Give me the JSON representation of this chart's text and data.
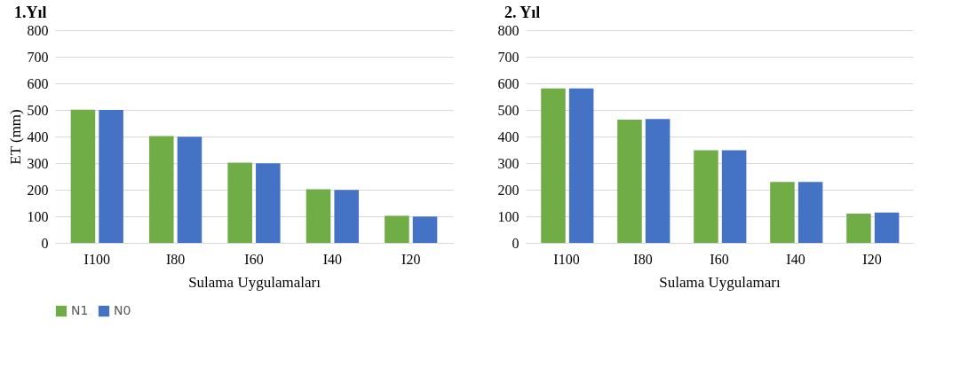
{
  "chart_data": [
    {
      "type": "bar",
      "title": "1.Yıl",
      "xlabel": "Sulama Uygulamaları",
      "ylabel": "ET (mm)",
      "categories": [
        "I100",
        "I80",
        "I60",
        "I40",
        "I20"
      ],
      "series": [
        {
          "name": "N1",
          "color": "#70ad47",
          "values": [
            501,
            402,
            302,
            202,
            102
          ]
        },
        {
          "name": "N0",
          "color": "#4472c4",
          "values": [
            500,
            399,
            299,
            199,
            99
          ]
        }
      ],
      "ylim": [
        0,
        800
      ],
      "yticks": [
        0,
        100,
        200,
        300,
        400,
        500,
        600,
        700,
        800
      ],
      "grid": "y",
      "legend": "bottom"
    },
    {
      "type": "bar",
      "title": "2. Yıl",
      "xlabel": "Sulama Uygulamarı",
      "categories": [
        "I100",
        "I80",
        "I60",
        "I40",
        "I20"
      ],
      "series": [
        {
          "name": "N1",
          "color": "#70ad47",
          "values": [
            581,
            463,
            348,
            229,
            110
          ]
        },
        {
          "name": "N0",
          "color": "#4472c4",
          "values": [
            581,
            466,
            348,
            229,
            114
          ]
        }
      ],
      "ylim": [
        0,
        800
      ],
      "yticks": [
        0,
        100,
        200,
        300,
        400,
        500,
        600,
        700,
        800
      ],
      "grid": "y",
      "legend": "bottom"
    }
  ]
}
